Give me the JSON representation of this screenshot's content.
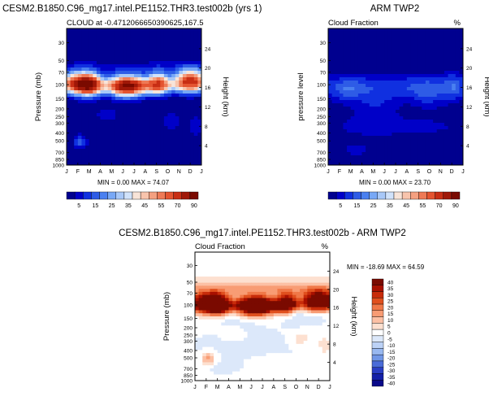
{
  "figure": {
    "panels": [
      {
        "title": "CESM2.B1850.C96_mg17.intel.PE1152.THR3.test002b (yrs 1)",
        "left_label": "CLOUD at -0.4712066650390625,167.5",
        "right_label": "",
        "ylabel": "Pressure (mb)",
        "y2label": "Height (km)",
        "stats": "MIN =   0.00 MAX =  74.07",
        "colorbar_labels": [
          "5",
          "15",
          "25",
          "35",
          "45",
          "55",
          "70",
          "90"
        ]
      },
      {
        "title": "ARM TWP2",
        "left_label": "Cloud Fraction",
        "right_label": "%",
        "ylabel": "pressure level",
        "y2label": "Height (km)",
        "stats": "MIN =   0.00 MAX =  23.70",
        "colorbar_labels": [
          "5",
          "15",
          "25",
          "35",
          "45",
          "55",
          "70",
          "90"
        ]
      },
      {
        "title": "CESM2.B1850.C96_mg17.intel.PE1152.THR3.test002b - ARM TWP2",
        "left_label": "Cloud Fraction",
        "right_label": "%",
        "ylabel": "Pressure (mb)",
        "y2label": "Height (km)",
        "stats": "MIN = -18.69 MAX =  64.59",
        "colorbar_labels": [
          "40",
          "35",
          "30",
          "25",
          "20",
          "15",
          "10",
          "5",
          "0",
          "-5",
          "-10",
          "-15",
          "-20",
          "-25",
          "-30",
          "-35",
          "-40"
        ]
      }
    ],
    "colors": {
      "seq": [
        "#00008f",
        "#0000c8",
        "#1030e0",
        "#2e5ce6",
        "#4a80f0",
        "#78a8f6",
        "#a8c8f8",
        "#d0e2fa",
        "#f8e4d8",
        "#f8c4ac",
        "#f4a080",
        "#ee7a56",
        "#e45430",
        "#c82e14",
        "#a01808",
        "#7a0a00"
      ],
      "div": [
        "#7a0a00",
        "#a81000",
        "#c82c0a",
        "#e0501e",
        "#f07848",
        "#f89c74",
        "#fcc0a4",
        "#fde0d0",
        "#ffffff",
        "#dce8fa",
        "#bcd2f6",
        "#98b8f0",
        "#7096e6",
        "#4a6cd8",
        "#2a3ec4",
        "#1420a8",
        "#0a0a8a"
      ]
    }
  },
  "chart_data": [
    {
      "type": "heatmap",
      "title": "CESM2.B1850.C96_mg17.intel.PE1152.THR3.test002b (yrs 1)",
      "ylabel": "Pressure (mb)",
      "y2label": "Height (km)",
      "x": [
        "J",
        "F",
        "M",
        "A",
        "M",
        "J",
        "J",
        "A",
        "S",
        "O",
        "N",
        "D",
        "J"
      ],
      "y_pressure_ticks": [
        30,
        50,
        70,
        100,
        150,
        200,
        250,
        300,
        400,
        500,
        700,
        850,
        1000
      ],
      "y_height_ticks": [
        24,
        20,
        16,
        12,
        8,
        4
      ],
      "levels": [
        5,
        15,
        25,
        35,
        45,
        55,
        70,
        90
      ],
      "min": 0.0,
      "max": 74.07,
      "log_y": true
    },
    {
      "type": "heatmap",
      "title": "ARM TWP2",
      "ylabel": "pressure level",
      "y2label": "Height (km)",
      "x": [
        "J",
        "F",
        "M",
        "A",
        "M",
        "J",
        "J",
        "A",
        "S",
        "O",
        "N",
        "D",
        "J"
      ],
      "y_pressure_ticks": [
        30,
        50,
        70,
        100,
        150,
        200,
        250,
        300,
        400,
        500,
        700,
        850,
        1000
      ],
      "y_height_ticks": [
        24,
        20,
        16,
        12,
        8,
        4
      ],
      "levels": [
        5,
        15,
        25,
        35,
        45,
        55,
        70,
        90
      ],
      "min": 0.0,
      "max": 23.7,
      "log_y": true
    },
    {
      "type": "heatmap",
      "title": "CESM2.B1850.C96_mg17.intel.PE1152.THR3.test002b - ARM TWP2",
      "ylabel": "Pressure (mb)",
      "y2label": "Height (km)",
      "x": [
        "J",
        "F",
        "M",
        "A",
        "M",
        "J",
        "J",
        "A",
        "S",
        "O",
        "N",
        "D",
        "J"
      ],
      "y_pressure_ticks": [
        30,
        50,
        70,
        100,
        150,
        200,
        250,
        300,
        400,
        500,
        700,
        850,
        1000
      ],
      "y_height_ticks": [
        24,
        20,
        16,
        12,
        8,
        4
      ],
      "levels": [
        -40,
        -35,
        -30,
        -25,
        -20,
        -15,
        -10,
        -5,
        0,
        5,
        10,
        15,
        20,
        25,
        30,
        35,
        40
      ],
      "min": -18.69,
      "max": 64.59,
      "log_y": true
    }
  ]
}
